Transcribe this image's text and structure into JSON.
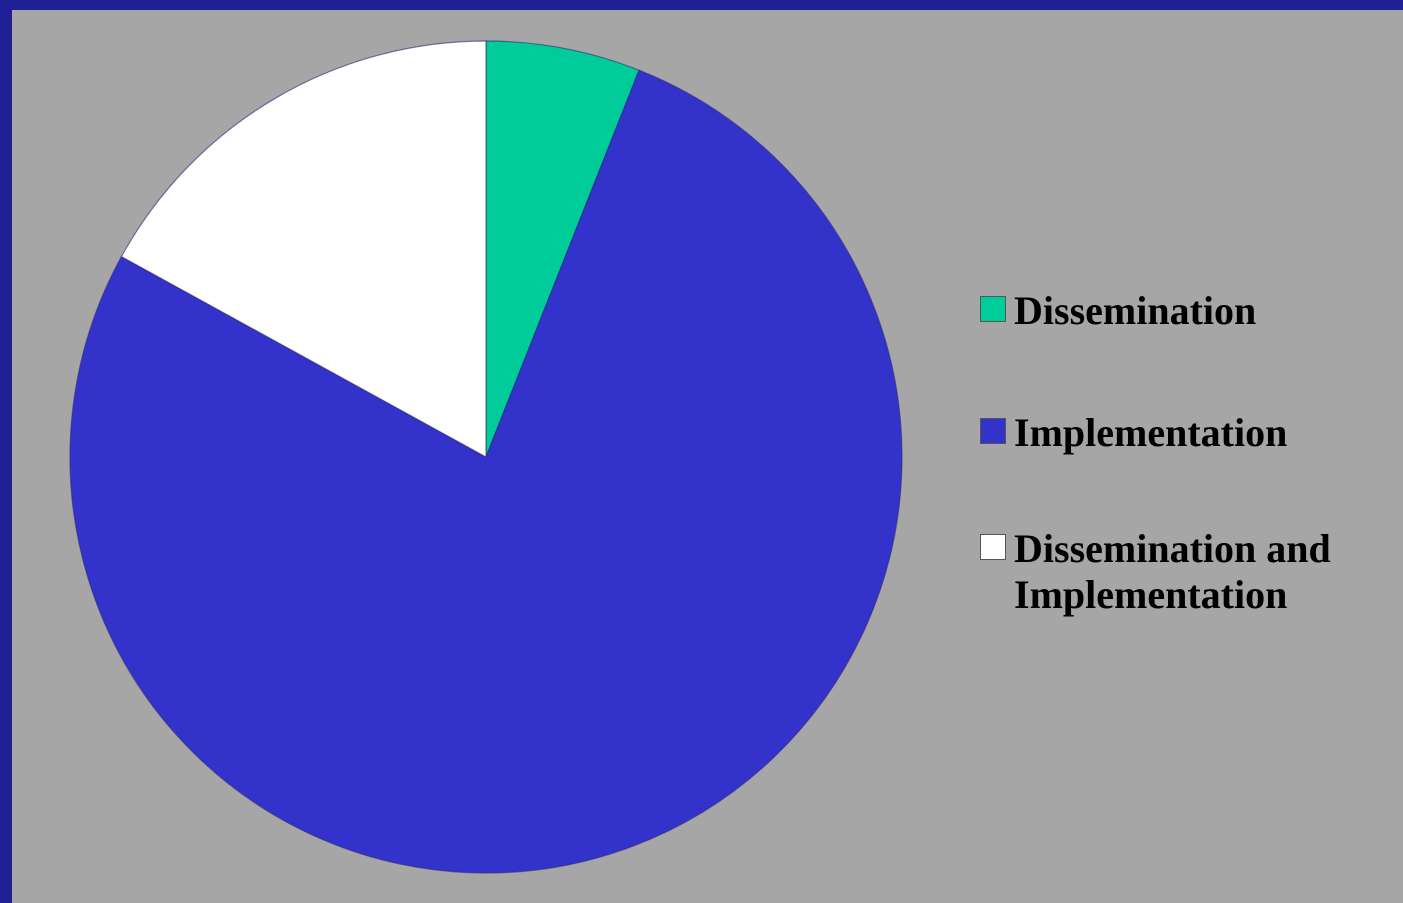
{
  "chart_data": {
    "type": "pie",
    "title": "",
    "slices": [
      {
        "label": "Dissemination",
        "value": 6,
        "color": "#00cc99"
      },
      {
        "label": "Implementation",
        "value": 77,
        "color": "#3333cc"
      },
      {
        "label": "Dissemination and Implementation",
        "value": 17,
        "color": "#ffffff"
      }
    ],
    "legend": {
      "placement": "right",
      "items": [
        {
          "label": "Dissemination",
          "color": "#00cc99"
        },
        {
          "label": "Implementation",
          "color": "#3333cc"
        },
        {
          "label_line1": "Dissemination and",
          "label_line2": "Implementation",
          "color": "#ffffff"
        }
      ]
    }
  },
  "colors": {
    "background": "#a6a6a6",
    "frame": "#1f1f96"
  }
}
